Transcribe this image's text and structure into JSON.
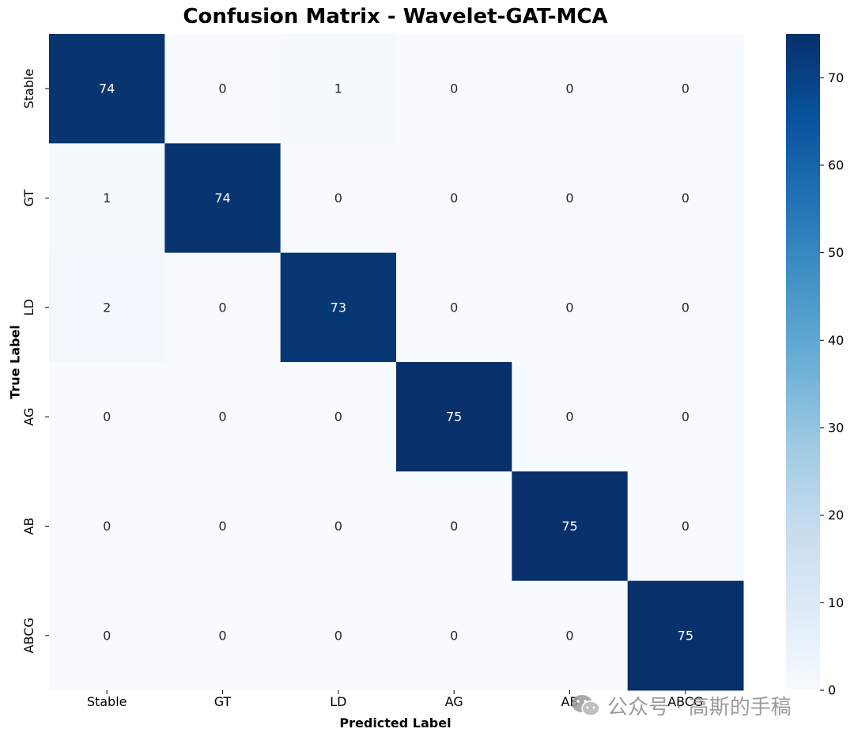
{
  "chart_data": {
    "type": "heatmap",
    "title": "Confusion Matrix - Wavelet-GAT-MCA",
    "xlabel": "Predicted Label",
    "ylabel": "True Label",
    "x_categories": [
      "Stable",
      "GT",
      "LD",
      "AG",
      "AB",
      "ABCG"
    ],
    "y_categories": [
      "Stable",
      "GT",
      "LD",
      "AG",
      "AB",
      "ABCG"
    ],
    "matrix": [
      [
        74,
        0,
        1,
        0,
        0,
        0
      ],
      [
        1,
        74,
        0,
        0,
        0,
        0
      ],
      [
        2,
        0,
        73,
        0,
        0,
        0
      ],
      [
        0,
        0,
        0,
        75,
        0,
        0
      ],
      [
        0,
        0,
        0,
        0,
        75,
        0
      ],
      [
        0,
        0,
        0,
        0,
        0,
        75
      ]
    ],
    "colormap": "Blues",
    "colorbar": {
      "min": 0,
      "max": 75,
      "ticks": [
        0,
        10,
        20,
        30,
        40,
        50,
        60,
        70
      ]
    }
  },
  "watermark": {
    "text": "公众号 · 高斯的手稿",
    "icon": "wechat-icon"
  }
}
